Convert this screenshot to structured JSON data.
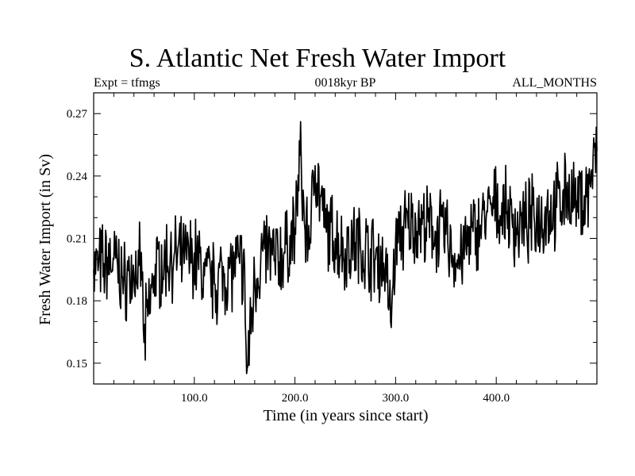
{
  "chart_data": {
    "type": "line",
    "title": "S. Atlantic Net Fresh Water Import",
    "subtitle_left": "Expt = tfmgs",
    "subtitle_center": "0018kyr BP",
    "subtitle_right": "ALL_MONTHS",
    "xlabel": "Time (in years since start)",
    "ylabel": "Fresh Water Import (in Sv)",
    "xlim": [
      0,
      500
    ],
    "ylim": [
      0.14,
      0.28
    ],
    "xticks": [
      100,
      200,
      300,
      400
    ],
    "xtick_labels": [
      "100.0",
      "200.0",
      "300.0",
      "400.0"
    ],
    "yticks": [
      0.15,
      0.18,
      0.21,
      0.24,
      0.27
    ],
    "ytick_labels": [
      "0.15",
      "0.18",
      "0.21",
      "0.24",
      "0.27"
    ],
    "grid": false,
    "line_color": "#000000",
    "series": [
      {
        "x": [
          0,
          10,
          20,
          30,
          40,
          45,
          48,
          50,
          60,
          70,
          80,
          90,
          100,
          110,
          120,
          130,
          140,
          145,
          150,
          152,
          160,
          170,
          180,
          190,
          200,
          205,
          210,
          215,
          220,
          230,
          240,
          250,
          260,
          270,
          280,
          290,
          295,
          300,
          310,
          320,
          330,
          340,
          350,
          360,
          370,
          380,
          390,
          400,
          410,
          420,
          430,
          440,
          450,
          460,
          470,
          480,
          490,
          500
        ],
        "y": [
          0.195,
          0.198,
          0.2,
          0.19,
          0.193,
          0.197,
          0.19,
          0.16,
          0.192,
          0.2,
          0.202,
          0.198,
          0.203,
          0.192,
          0.188,
          0.193,
          0.195,
          0.198,
          0.196,
          0.145,
          0.19,
          0.205,
          0.2,
          0.203,
          0.215,
          0.25,
          0.214,
          0.21,
          0.245,
          0.215,
          0.21,
          0.205,
          0.208,
          0.205,
          0.2,
          0.198,
          0.17,
          0.21,
          0.215,
          0.218,
          0.215,
          0.213,
          0.212,
          0.198,
          0.205,
          0.215,
          0.22,
          0.225,
          0.222,
          0.215,
          0.218,
          0.22,
          0.222,
          0.225,
          0.232,
          0.228,
          0.23,
          0.252
        ]
      }
    ]
  }
}
